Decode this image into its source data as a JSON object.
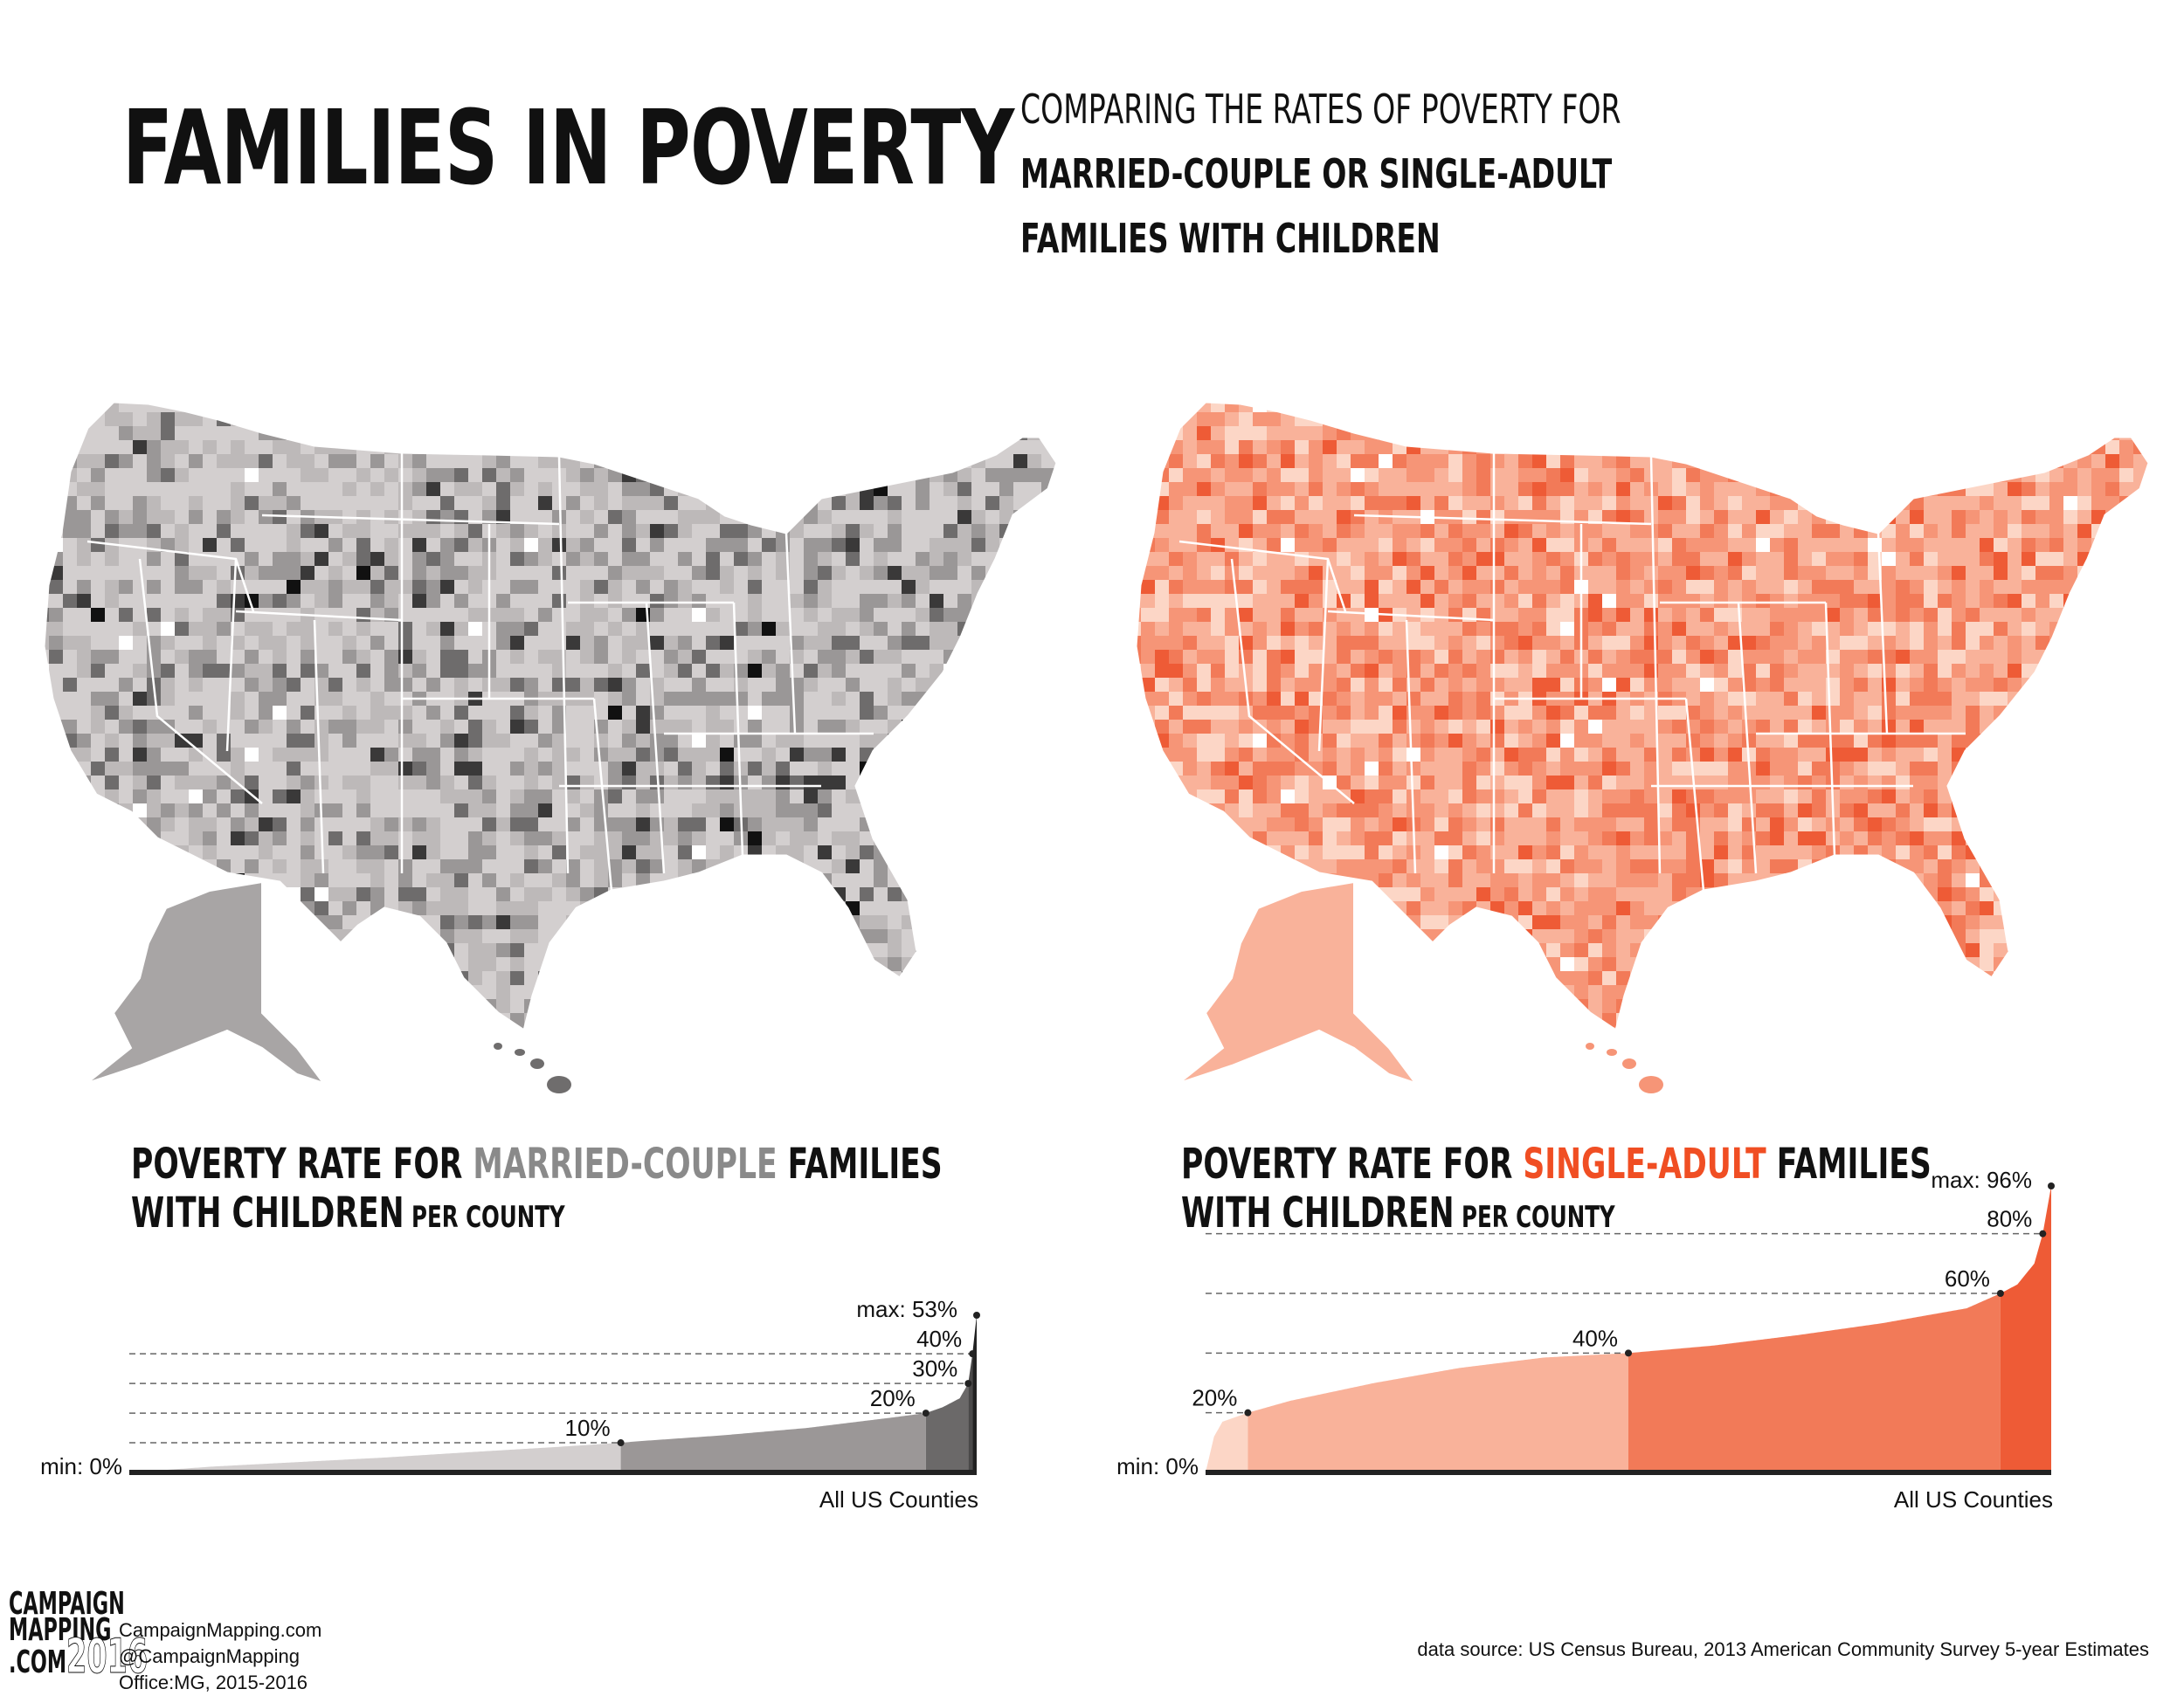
{
  "header": {
    "title": "FAMILIES IN POVERTY",
    "subtitle_line1": "COMPARING THE RATES OF POVERTY FOR",
    "subtitle_line2": "MARRIED-COUPLE OR SINGLE-ADULT",
    "subtitle_line3": "FAMILIES WITH CHILDREN"
  },
  "maps": {
    "left": {
      "palette": [
        "#d3cfcf",
        "#bdb9b9",
        "#9a9797",
        "#6e6c6c",
        "#3a3939",
        "#111111",
        "#ffffff"
      ]
    },
    "right": {
      "palette": [
        "#fcd6c6",
        "#f9b29a",
        "#f69577",
        "#f27a58",
        "#ee5b36",
        "#ffffff"
      ]
    }
  },
  "chart_left": {
    "title_prefix": "POVERTY RATE FOR ",
    "title_accent": "MARRIED-COUPLE",
    "title_suffix": " FAMILIES",
    "title_line2": "WITH CHILDREN",
    "title_line2_small": " PER COUNTY",
    "xlabel": "All US Counties",
    "min_label": "min: 0%",
    "max_label": "max: 53%",
    "marks": [
      "10%",
      "20%",
      "30%",
      "40%"
    ]
  },
  "chart_right": {
    "title_prefix": "POVERTY RATE FOR ",
    "title_accent": "SINGLE-ADULT",
    "title_suffix": " FAMILIES",
    "title_line2": "WITH CHILDREN",
    "title_line2_small": " PER COUNTY",
    "xlabel": "All US Counties",
    "min_label": "min: 0%",
    "max_label": "max: 96%",
    "marks": [
      "20%",
      "40%",
      "60%",
      "80%"
    ]
  },
  "chart_data": [
    {
      "type": "area",
      "xlabel": "All US Counties",
      "ylabel": "",
      "ylim": [
        0,
        53
      ],
      "x": [
        0,
        0.05,
        0.1,
        0.2,
        0.3,
        0.4,
        0.5,
        0.58,
        0.6,
        0.7,
        0.8,
        0.9,
        0.94,
        0.96,
        0.98,
        0.99,
        0.995,
        1
      ],
      "values": [
        0,
        1.0,
        2.0,
        3.5,
        5.0,
        6.8,
        8.5,
        10,
        10.5,
        12.5,
        15,
        18.5,
        20,
        22,
        25,
        30,
        40,
        53
      ],
      "bands": [
        {
          "from": 0,
          "to": 10,
          "color": "#d3cfcf"
        },
        {
          "from": 10,
          "to": 20,
          "color": "#9b9797"
        },
        {
          "from": 20,
          "to": 30,
          "color": "#6b6969"
        },
        {
          "from": 30,
          "to": 40,
          "color": "#4a4949"
        },
        {
          "from": 40,
          "to": 53,
          "color": "#222222"
        }
      ]
    },
    {
      "type": "area",
      "xlabel": "All US Counties",
      "ylabel": "",
      "ylim": [
        0,
        96
      ],
      "x": [
        0,
        0.01,
        0.02,
        0.05,
        0.1,
        0.2,
        0.3,
        0.4,
        0.5,
        0.6,
        0.7,
        0.8,
        0.9,
        0.94,
        0.96,
        0.98,
        0.99,
        1
      ],
      "values": [
        0,
        12,
        17,
        20,
        24,
        30,
        35,
        38.5,
        40,
        42.5,
        46,
        50,
        55,
        60,
        63,
        70,
        80,
        96
      ],
      "bands": [
        {
          "from": 0,
          "to": 20,
          "color": "#fcd6c6"
        },
        {
          "from": 20,
          "to": 40,
          "color": "#f9b29a"
        },
        {
          "from": 40,
          "to": 60,
          "color": "#f27a58"
        },
        {
          "from": 60,
          "to": 96,
          "color": "#ee5b36"
        }
      ]
    }
  ],
  "footer": {
    "logo_line1": "CAMPAIGN",
    "logo_line2": "MAPPING",
    "logo_line3": ".COM",
    "logo_year": "2016",
    "site": "CampaignMapping.com",
    "handle": "@CampaignMapping",
    "office": "Office:MG, 2015-2016",
    "source": "data source: US Census Bureau, 2013 American Community Survey 5-year Estimates"
  }
}
